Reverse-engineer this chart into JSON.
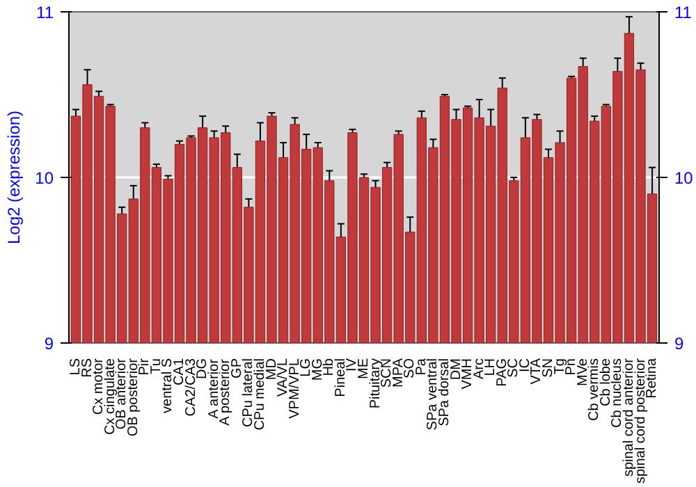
{
  "chart_data": {
    "type": "bar",
    "ylabel": "Log2 (expression)",
    "categories": [
      "LS",
      "RS",
      "Cx motor",
      "Cx cingulate",
      "OB anterior",
      "OB posterior",
      "Pir",
      "Tu",
      "ventral S",
      "CA1",
      "CA2/CA3",
      "DG",
      "A anterior",
      "A posterior",
      "GP",
      "CPu lateral",
      "CPu medial",
      "MD",
      "VA/VL",
      "VPM/VPL",
      "LG",
      "MG",
      "Hb",
      "Pineal",
      "IV",
      "ME",
      "Pituitary",
      "SCN",
      "MPA",
      "SO",
      "Pa",
      "SPa ventral",
      "SPa dorsal",
      "DM",
      "VMH",
      "Arc",
      "LH",
      "PAG",
      "SC",
      "IC",
      "VTA",
      "SN",
      "Tg",
      "Pn",
      "MVe",
      "Cb vermis",
      "Cb lobe",
      "Cb nucleus",
      "spinal cord anterior",
      "spinal cord posterior",
      "Retina"
    ],
    "values": [
      10.37,
      10.56,
      10.49,
      10.43,
      9.78,
      9.87,
      10.3,
      10.06,
      9.99,
      10.2,
      10.24,
      10.3,
      10.24,
      10.27,
      10.06,
      9.82,
      10.22,
      10.37,
      10.12,
      10.32,
      10.17,
      10.18,
      9.98,
      9.64,
      10.27,
      10.0,
      9.94,
      10.06,
      10.26,
      9.67,
      10.36,
      10.18,
      10.49,
      10.35,
      10.42,
      10.36,
      10.31,
      10.54,
      9.98,
      10.24,
      10.35,
      10.12,
      10.21,
      10.6,
      10.67,
      10.34,
      10.43,
      10.64,
      10.87,
      10.65,
      9.9
    ],
    "errors": [
      0.04,
      0.09,
      0.03,
      0.01,
      0.04,
      0.08,
      0.03,
      0.02,
      0.02,
      0.02,
      0.01,
      0.07,
      0.04,
      0.04,
      0.08,
      0.05,
      0.11,
      0.02,
      0.09,
      0.04,
      0.09,
      0.03,
      0.06,
      0.08,
      0.02,
      0.02,
      0.04,
      0.03,
      0.02,
      0.09,
      0.04,
      0.05,
      0.01,
      0.06,
      0.01,
      0.11,
      0.1,
      0.06,
      0.02,
      0.12,
      0.03,
      0.05,
      0.07,
      0.01,
      0.05,
      0.03,
      0.01,
      0.08,
      0.1,
      0.04,
      0.16
    ],
    "color": "#c0393b",
    "ylim": [
      9,
      11
    ],
    "yticks": [
      9,
      10,
      11
    ],
    "y2lim": [
      9,
      11
    ],
    "y2ticks": [
      9,
      10,
      11
    ],
    "grid": "y"
  }
}
